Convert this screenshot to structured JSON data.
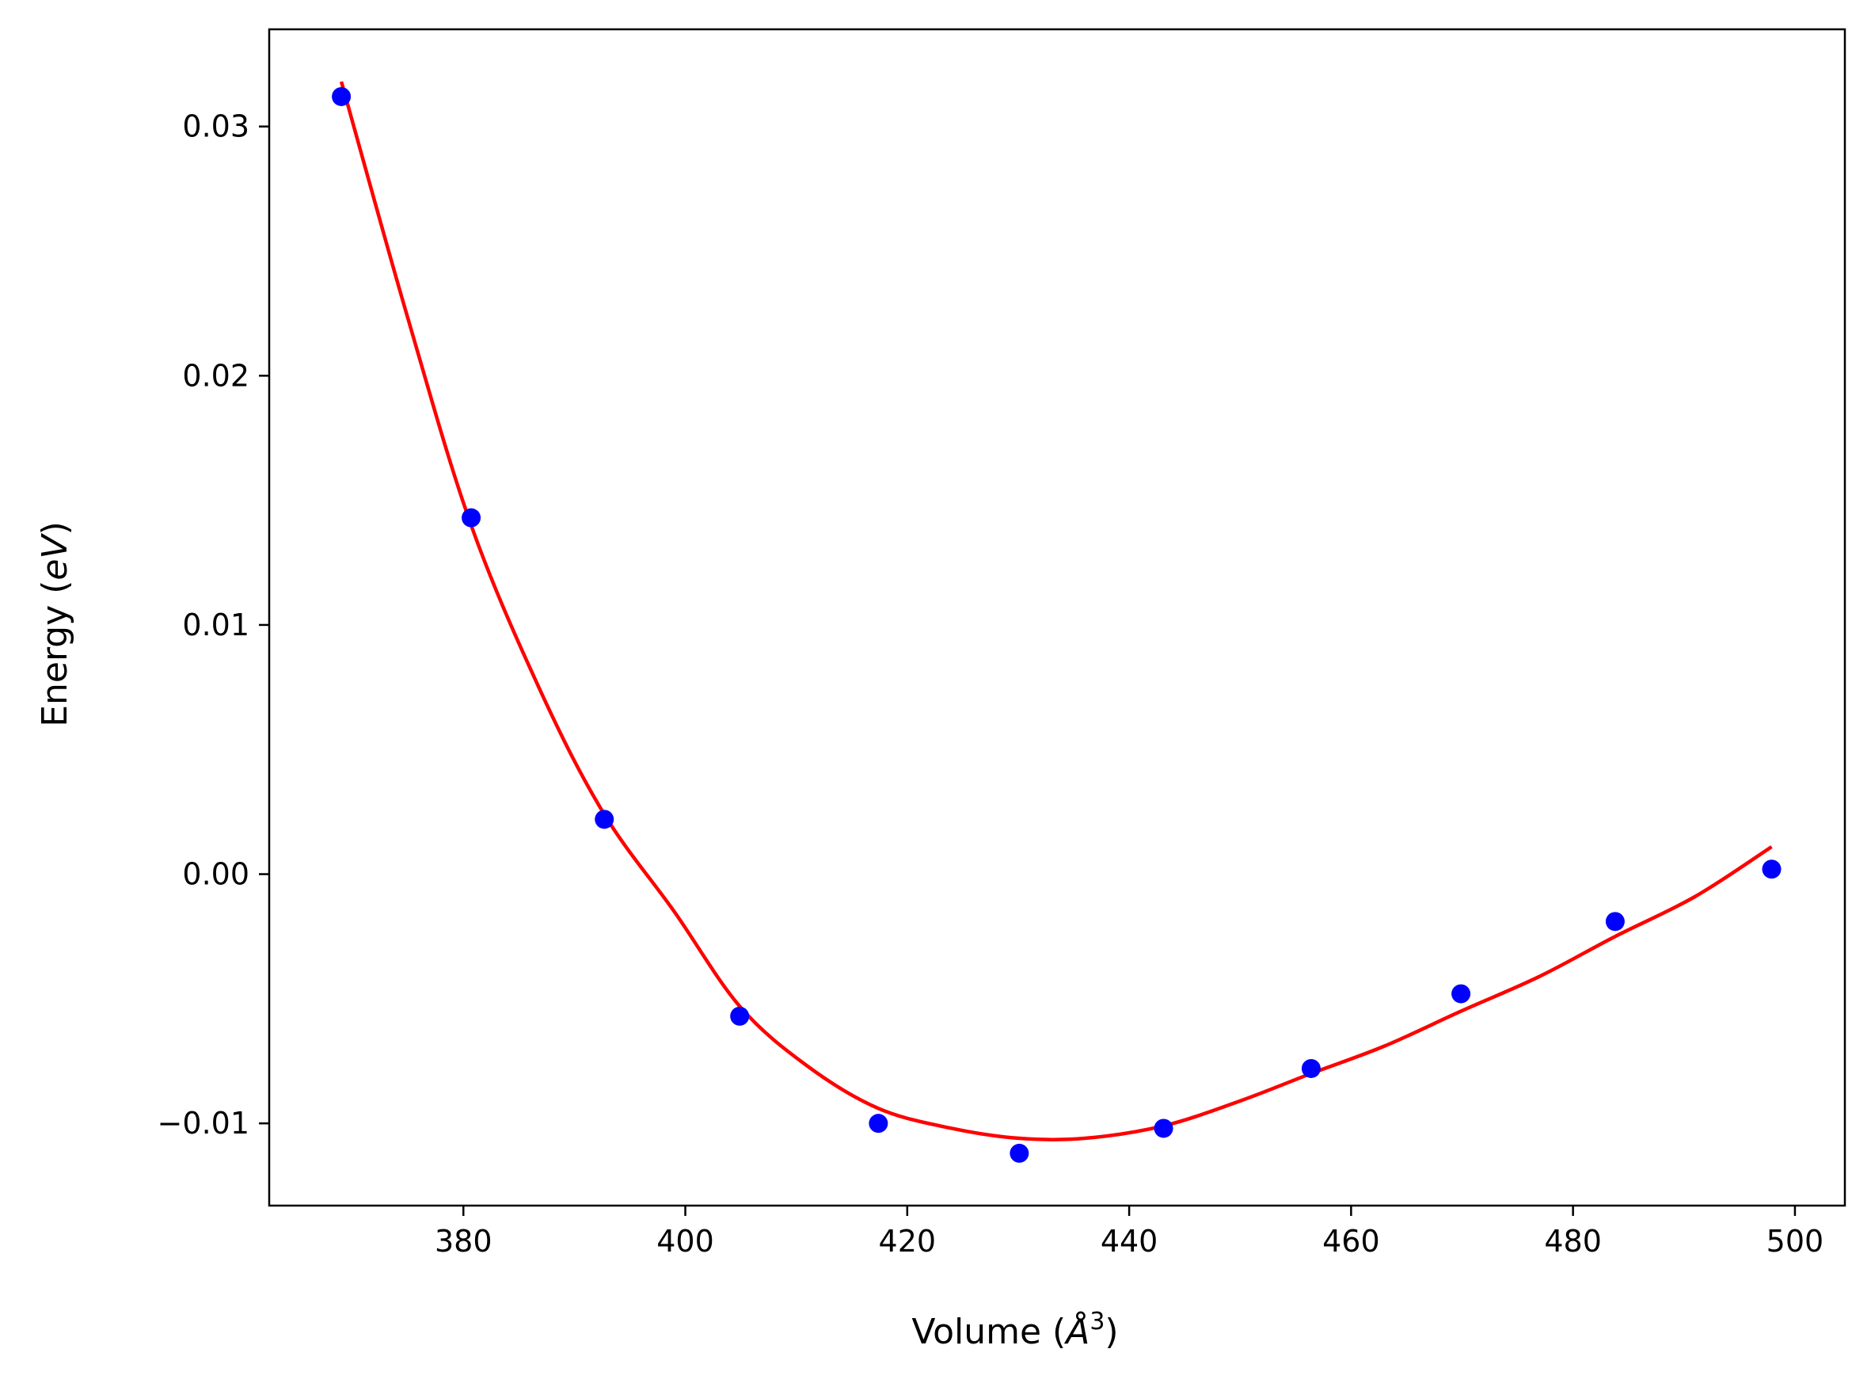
{
  "chart_data": {
    "type": "scatter",
    "title": "",
    "xlabel": "Volume (",
    "xlabel_unit": "Å",
    "xlabel_exp": "3",
    "xlabel_close": ")",
    "ylabel": "Energy (",
    "ylabel_unit": "eV",
    "ylabel_close": ")",
    "xlim": [
      362.5,
      504.5
    ],
    "ylim": [
      -0.0133,
      0.0339
    ],
    "xticks": [
      380,
      400,
      420,
      440,
      460,
      480,
      500
    ],
    "xtick_labels": [
      "380",
      "400",
      "420",
      "440",
      "460",
      "480",
      "500"
    ],
    "yticks": [
      -0.01,
      0.0,
      0.01,
      0.02,
      0.03
    ],
    "ytick_labels": [
      "−0.01",
      "0.00",
      "0.01",
      "0.02",
      "0.03"
    ],
    "grid": false,
    "legend": "none",
    "series": [
      {
        "kind": "points",
        "color": "#0000ff",
        "x": [
          369.0,
          380.7,
          392.7,
          404.9,
          417.4,
          430.1,
          443.1,
          456.4,
          469.9,
          483.8,
          497.9
        ],
        "y": [
          0.0312,
          0.0143,
          0.0022,
          -0.0057,
          -0.01,
          -0.0112,
          -0.0102,
          -0.0078,
          -0.0048,
          -0.0019,
          0.0002
        ]
      },
      {
        "kind": "fit-line",
        "color": "#ff0000",
        "x": [
          369.0,
          375.0,
          380.7,
          387.0,
          392.7,
          399.0,
          404.9,
          411.0,
          417.4,
          424.0,
          430.1,
          436.0,
          443.1,
          450.0,
          456.4,
          463.0,
          469.9,
          477.0,
          483.8,
          491.0,
          497.9
        ],
        "y": [
          0.0318,
          0.0223,
          0.014,
          0.0073,
          0.0024,
          -0.0015,
          -0.0053,
          -0.0077,
          -0.0094,
          -0.0102,
          -0.0106,
          -0.0106,
          -0.0101,
          -0.0091,
          -0.008,
          -0.0069,
          -0.0055,
          -0.0041,
          -0.0025,
          -0.0009,
          0.0011
        ]
      }
    ]
  }
}
